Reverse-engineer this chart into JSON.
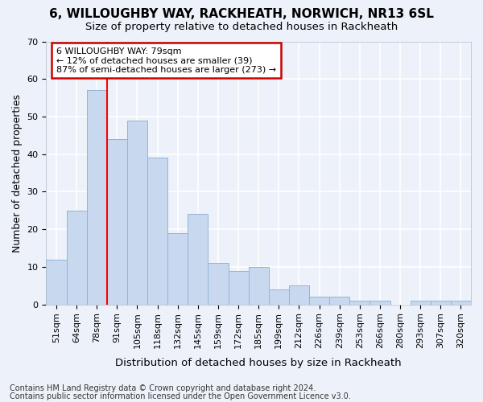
{
  "title1": "6, WILLOUGHBY WAY, RACKHEATH, NORWICH, NR13 6SL",
  "title2": "Size of property relative to detached houses in Rackheath",
  "xlabel": "Distribution of detached houses by size in Rackheath",
  "ylabel": "Number of detached properties",
  "categories": [
    "51sqm",
    "64sqm",
    "78sqm",
    "91sqm",
    "105sqm",
    "118sqm",
    "132sqm",
    "145sqm",
    "159sqm",
    "172sqm",
    "185sqm",
    "199sqm",
    "212sqm",
    "226sqm",
    "239sqm",
    "253sqm",
    "266sqm",
    "280sqm",
    "293sqm",
    "307sqm",
    "320sqm"
  ],
  "values": [
    12,
    25,
    57,
    44,
    49,
    39,
    19,
    24,
    11,
    9,
    10,
    4,
    5,
    2,
    2,
    1,
    1,
    0,
    1,
    1,
    1
  ],
  "bar_color": "#c8d9ef",
  "bar_edge_color": "#92b4d4",
  "red_line_x": 2.5,
  "annotation_line1": "6 WILLOUGHBY WAY: 79sqm",
  "annotation_line2": "← 12% of detached houses are smaller (39)",
  "annotation_line3": "87% of semi-detached houses are larger (273) →",
  "annotation_box_color": "#ffffff",
  "annotation_border_color": "#cc0000",
  "footer1": "Contains HM Land Registry data © Crown copyright and database right 2024.",
  "footer2": "Contains public sector information licensed under the Open Government Licence v3.0.",
  "ylim": [
    0,
    70
  ],
  "yticks": [
    0,
    10,
    20,
    30,
    40,
    50,
    60,
    70
  ],
  "background_color": "#edf2fa",
  "grid_color": "#ffffff",
  "title1_fontsize": 11,
  "title2_fontsize": 9.5,
  "xlabel_fontsize": 9.5,
  "ylabel_fontsize": 9,
  "tick_fontsize": 8,
  "footer_fontsize": 7
}
